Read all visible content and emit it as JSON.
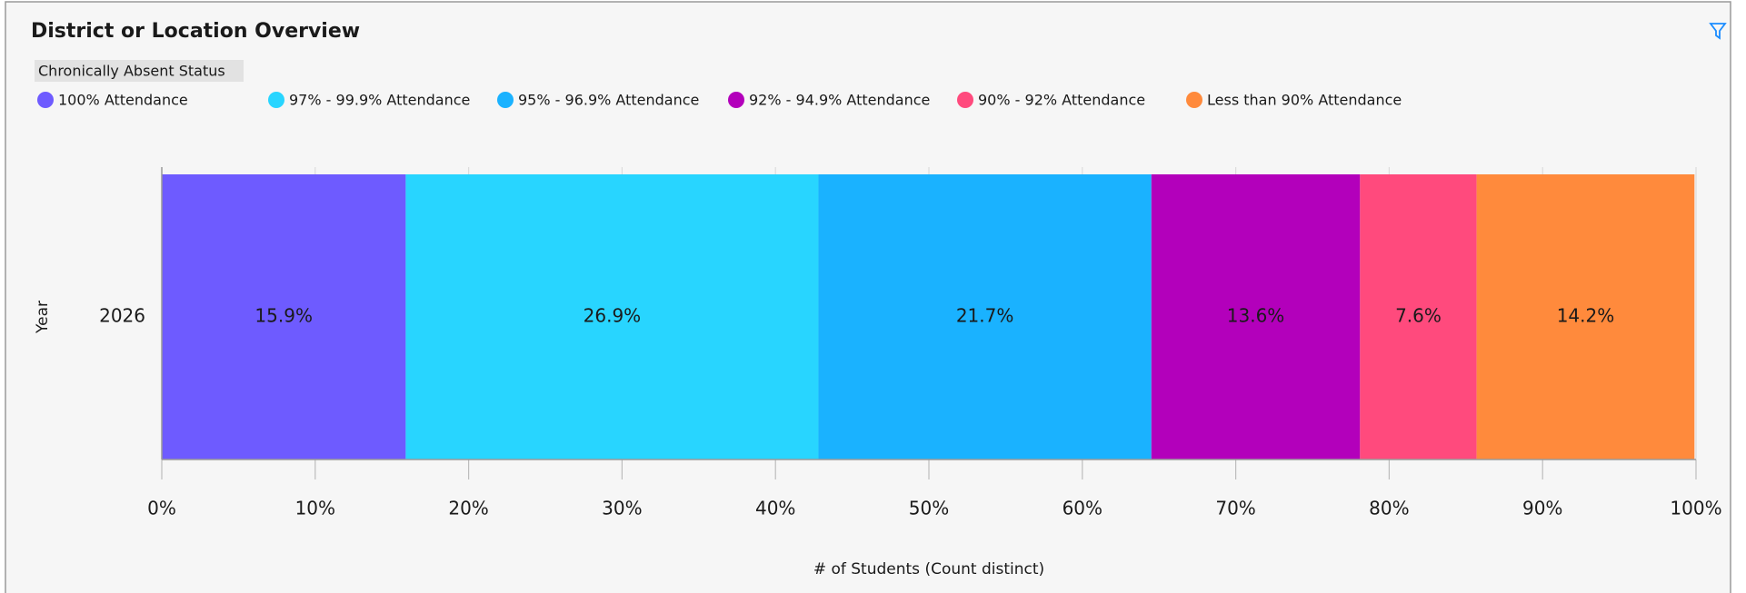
{
  "chart_data": {
    "type": "stacked_bar_horizontal",
    "title": "District or Location Overview",
    "legend_title": "Chronically Absent Status",
    "x_label": "# of Students (Count distinct)",
    "y_label": "Year",
    "categories": [
      "2026"
    ],
    "series": [
      {
        "name": "100% Attendance",
        "color": "#6e5bff",
        "values": [
          15.9
        ],
        "value_labels": [
          "15.9%"
        ]
      },
      {
        "name": "97% - 99.9% Attendance",
        "color": "#28d5ff",
        "values": [
          26.9
        ],
        "value_labels": [
          "26.9%"
        ]
      },
      {
        "name": "95% - 96.9% Attendance",
        "color": "#1ab2ff",
        "values": [
          21.7
        ],
        "value_labels": [
          "21.7%"
        ]
      },
      {
        "name": "92% - 94.9% Attendance",
        "color": "#b300bb",
        "values": [
          13.6
        ],
        "value_labels": [
          "13.6%"
        ]
      },
      {
        "name": "90% - 92% Attendance",
        "color": "#ff4a7d",
        "values": [
          7.6
        ],
        "value_labels": [
          "7.6%"
        ]
      },
      {
        "name": "Less than 90% Attendance",
        "color": "#ff8a3c",
        "values": [
          14.2
        ],
        "value_labels": [
          "14.2%"
        ]
      }
    ],
    "xlim": [
      0,
      100
    ],
    "xticks": [
      {
        "value": 0,
        "label": "0%"
      },
      {
        "value": 10,
        "label": "10%"
      },
      {
        "value": 20,
        "label": "20%"
      },
      {
        "value": 30,
        "label": "30%"
      },
      {
        "value": 40,
        "label": "40%"
      },
      {
        "value": 50,
        "label": "50%"
      },
      {
        "value": 60,
        "label": "60%"
      },
      {
        "value": 70,
        "label": "70%"
      },
      {
        "value": 80,
        "label": "80%"
      },
      {
        "value": 90,
        "label": "90%"
      },
      {
        "value": 100,
        "label": "100%"
      }
    ],
    "grid": true
  }
}
